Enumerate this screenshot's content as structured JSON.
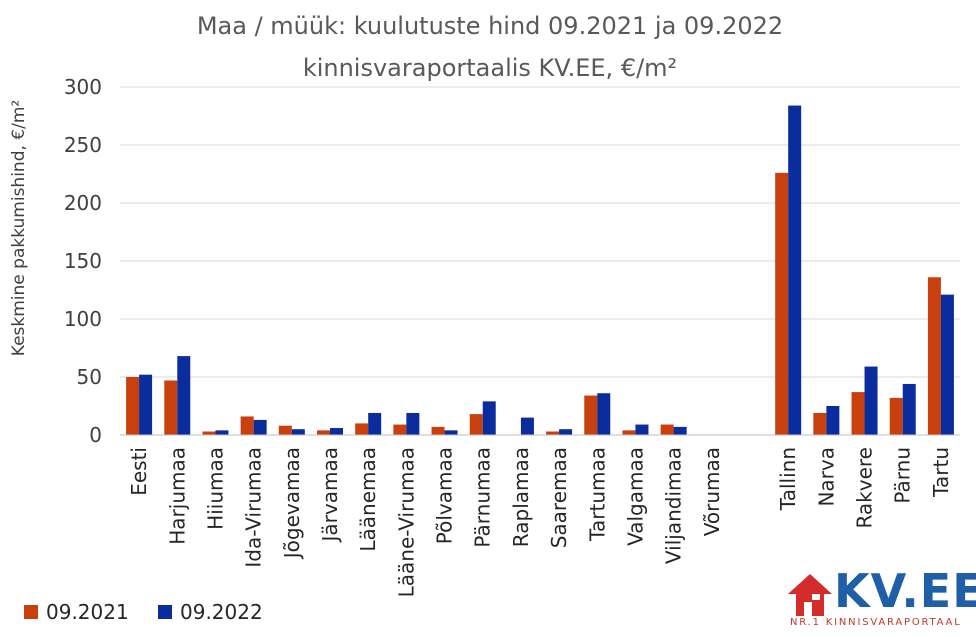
{
  "chart_data": {
    "type": "bar",
    "title_line1": "Maa / müük: kuulutuste hind 09.2021 ja 09.2022",
    "title_line2": "kinnisvaraportaalis KV.EE, €/m²",
    "ylabel": "Keskmine pakkumishind, €/m²",
    "ylim": [
      0,
      300
    ],
    "yticks": [
      0,
      50,
      100,
      150,
      200,
      250,
      300
    ],
    "grid": true,
    "legend_position": "bottom-left",
    "categories": [
      "Eesti",
      "Harjumaa",
      "Hiiumaa",
      "Ida-Virumaa",
      "Jõgevamaa",
      "Järvamaa",
      "Läänemaa",
      "Lääne-Virumaa",
      "Põlvamaa",
      "Pärnumaa",
      "Raplamaa",
      "Saaremaa",
      "Tartumaa",
      "Valgamaa",
      "Viljandimaa",
      "Võrumaa",
      "",
      "Tallinn",
      "Narva",
      "Rakvere",
      "Pärnu",
      "Tartu"
    ],
    "series": [
      {
        "name": "09.2021",
        "color": "#C9400F",
        "values": [
          50,
          47,
          3,
          16,
          8,
          4,
          10,
          9,
          7,
          18,
          0,
          3,
          34,
          4,
          9,
          0,
          null,
          226,
          19,
          37,
          32,
          136
        ]
      },
      {
        "name": "09.2022",
        "color": "#0A2C9C",
        "values": [
          52,
          68,
          4,
          13,
          5,
          6,
          19,
          19,
          4,
          29,
          15,
          5,
          36,
          9,
          7,
          0,
          null,
          284,
          25,
          59,
          44,
          121
        ]
      }
    ]
  },
  "logo": {
    "text": "KV.EE",
    "subtitle": "NR.1 KINNISVARAPORTAAL",
    "brand_color": "#1F5FA8",
    "accent_color": "#D42B2B"
  }
}
